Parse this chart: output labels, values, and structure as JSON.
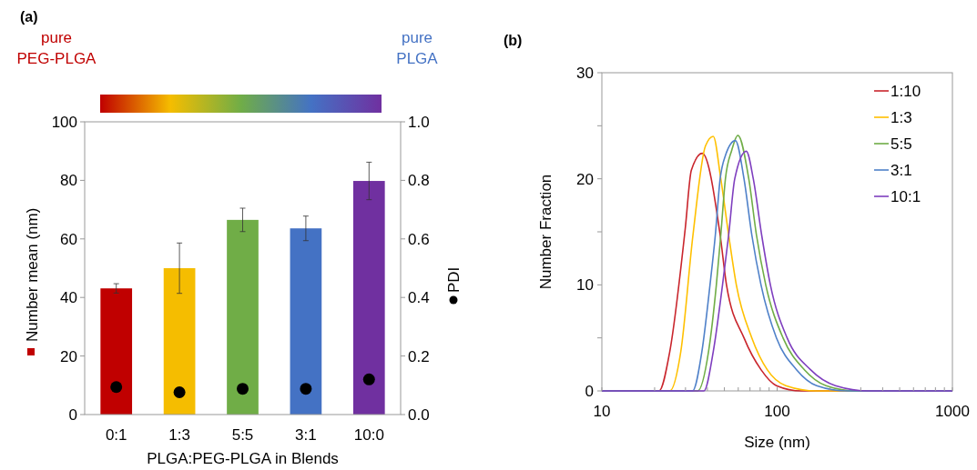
{
  "chart_data": [
    {
      "type": "bar",
      "title": "(a)",
      "xlabel": "PLGA:PEG-PLGA in Blends",
      "ylabel": "Number mean (nm)",
      "y2label": "PDI",
      "categories": [
        "0:1",
        "1:3",
        "5:5",
        "3:1",
        "10:0"
      ],
      "series": [
        {
          "type": "bar",
          "colors": [
            "#c00000",
            "#f5bd00",
            "#70ad47",
            "#4472c4",
            "#7030a0"
          ],
          "values": [
            43.1,
            50,
            66.5,
            63.6,
            79.8
          ],
          "errors": [
            1.6,
            8.6,
            4,
            4.2,
            6.4
          ]
        },
        {
          "type": "scatter",
          "axis": "y2",
          "color": "#000000",
          "marker": "circle",
          "values": [
            0.094,
            0.076,
            0.088,
            0.088,
            0.12
          ]
        }
      ],
      "ylim": [
        0,
        100
      ],
      "yticks": [
        0,
        20,
        40,
        60,
        80,
        100
      ],
      "y2lim": [
        0,
        1
      ],
      "y2ticks": [
        {
          "value": 0,
          "label": "0.0"
        },
        {
          "value": 0.2,
          "label": "0.2"
        },
        {
          "value": 0.4,
          "label": "0.4"
        },
        {
          "value": 0.6,
          "label": "0.6"
        },
        {
          "value": 0.8,
          "label": "0.8"
        },
        {
          "value": 1,
          "label": "1.0"
        }
      ],
      "annotations": [
        "pure PEG-PLGA",
        "pure PLGA"
      ]
    },
    {
      "type": "line",
      "title": "(b)",
      "xlabel": "Size (nm)",
      "ylabel": "Number Fraction",
      "log": "x",
      "legend": "top right",
      "xlim": [
        10,
        1000
      ],
      "xticks": [
        10,
        {
          "value": 20,
          "label": null
        },
        {
          "value": 30,
          "label": null
        },
        {
          "value": 40,
          "label": null
        },
        {
          "value": 50,
          "label": null
        },
        {
          "value": 60,
          "label": null
        },
        {
          "value": 70,
          "label": null
        },
        {
          "value": 80,
          "label": null
        },
        {
          "value": 90,
          "label": null
        },
        100,
        {
          "value": 200,
          "label": null
        },
        {
          "value": 300,
          "label": null
        },
        {
          "value": 400,
          "label": null
        },
        {
          "value": 500,
          "label": null
        },
        {
          "value": 600,
          "label": null
        },
        {
          "value": 700,
          "label": null
        },
        {
          "value": 800,
          "label": null
        },
        {
          "value": 900,
          "label": null
        },
        1000
      ],
      "ylim": [
        0,
        30
      ],
      "yticks": [
        0,
        {
          "value": 5,
          "label": null
        },
        10,
        {
          "value": 15,
          "label": null
        },
        20,
        {
          "value": 25,
          "label": null
        },
        30
      ],
      "series": [
        {
          "name": "1:10",
          "color": "#c9252c",
          "x": [
            10,
            21.2,
            24.4,
            29.9,
            32.4,
            37.4,
            47.3,
            51.4,
            64.7,
            80.9,
            99,
            138,
            1000
          ],
          "values": [
            0,
            0,
            3.7,
            15.3,
            20.8,
            22.4,
            14.7,
            10,
            5,
            2,
            0.5,
            0,
            0
          ]
        },
        {
          "name": "1:3",
          "color": "#ffc000",
          "x": [
            10,
            24.4,
            28.2,
            33.1,
            39.0,
            43.2,
            47.7,
            52.9,
            58.5,
            71.7,
            87.8,
            112,
            168,
            1000
          ],
          "values": [
            0,
            0,
            3.7,
            14.7,
            23.1,
            24.0,
            20,
            14.7,
            10,
            5,
            2,
            0.5,
            0,
            0
          ]
        },
        {
          "name": "5:5",
          "color": "#70ad47",
          "x": [
            10,
            35.2,
            40.6,
            45.0,
            47.7,
            50.7,
            55.1,
            59.7,
            68.9,
            76.2,
            86.1,
            108,
            143,
            190,
            285,
            1000
          ],
          "values": [
            0,
            0,
            3.7,
            10,
            14.7,
            20,
            22.7,
            24.1,
            20,
            14.7,
            10,
            5,
            2,
            0.5,
            0,
            0
          ]
        },
        {
          "name": "3:1",
          "color": "#4f81c9",
          "x": [
            10,
            32.9,
            37.2,
            41.4,
            44.4,
            47.3,
            50.7,
            57.8,
            64.7,
            71.7,
            80.9,
            99.1,
            129,
            168,
            252,
            1000
          ],
          "values": [
            0,
            0,
            3.7,
            10,
            14.7,
            20,
            22.2,
            23.6,
            20,
            14.7,
            10,
            5,
            2,
            0.5,
            0,
            0
          ]
        },
        {
          "name": "10:1",
          "color": "#7f3fbf",
          "x": [
            10,
            38.2,
            43.2,
            48.8,
            52.9,
            57.3,
            66.7,
            73.1,
            81.6,
            91.5,
            114,
            155,
            215,
            336,
            1000
          ],
          "values": [
            0,
            0,
            3.7,
            10,
            14.7,
            20,
            22.6,
            20,
            14.7,
            10,
            5,
            2,
            0.5,
            0,
            0
          ]
        }
      ]
    }
  ]
}
